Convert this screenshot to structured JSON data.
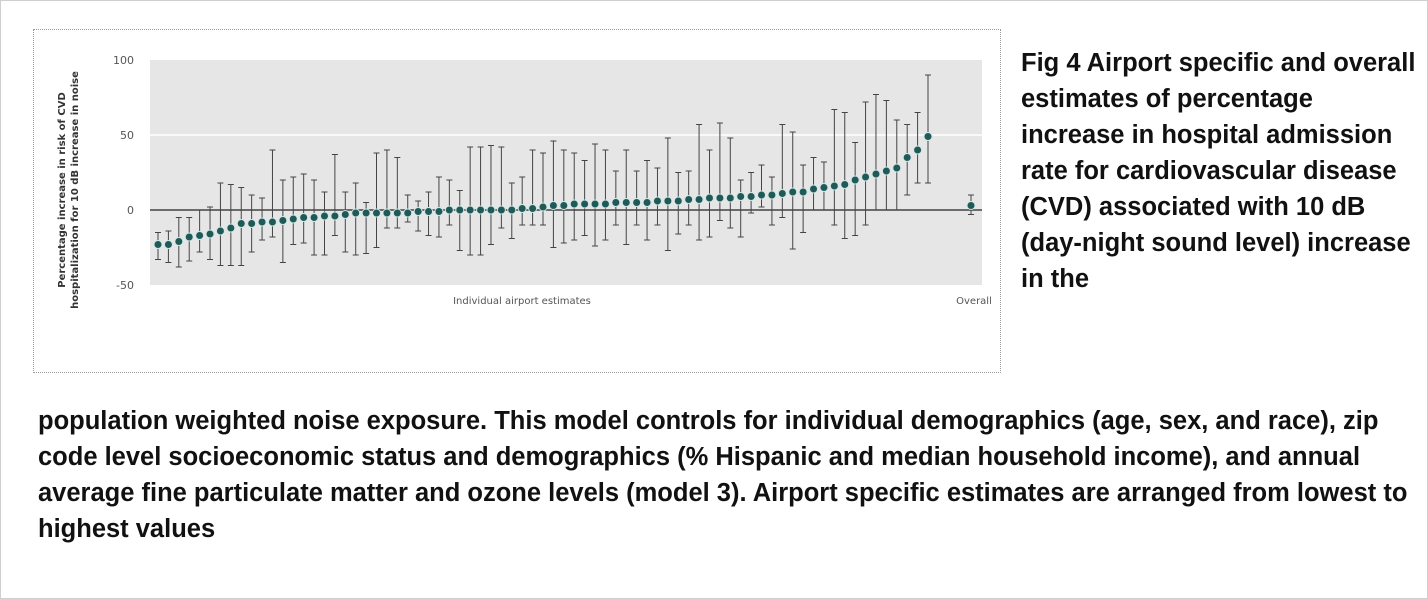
{
  "caption": {
    "right": "Fig 4 Airport specific and overall estimates of percentage increase in hospital admission rate for cardiovascular disease (CVD) associated with 10 dB (day-night sound level) increase in the",
    "bottom": "population weighted noise exposure. This model controls for individual demographics (age, sex, and race), zip code level socioeconomic status and demographics (% Hispanic and median household income), and annual average fine particulate matter and ozone levels (model 3). Airport specific estimates are arranged from lowest to highest values"
  },
  "chart_data": {
    "type": "scatter",
    "ylabel_line1": "Percentage increase in risk of CVD",
    "ylabel_line2": "hospitalization for 10 dB increase in noise",
    "xlabel": "Individual airport estimates",
    "overall_label": "Overall",
    "ylim": [
      -55,
      100
    ],
    "yticks": [
      100,
      50,
      0,
      -50
    ],
    "band_range": [
      -50,
      100
    ],
    "grid_lines": [
      50
    ],
    "reference_line": 0,
    "colors": {
      "band": "#e6e6e6",
      "point": "#1f5a58",
      "point_edge": "#cfe7e4",
      "line": "#444444"
    },
    "estimates": [
      -23,
      -23,
      -21,
      -18,
      -17,
      -16,
      -14,
      -12,
      -9,
      -9,
      -8,
      -8,
      -7,
      -6,
      -5,
      -5,
      -4,
      -4,
      -3,
      -2,
      -2,
      -2,
      -2,
      -2,
      -2,
      -1,
      -1,
      -1,
      0,
      0,
      0,
      0,
      0,
      0,
      0,
      1,
      1,
      2,
      3,
      3,
      4,
      4,
      4,
      4,
      5,
      5,
      5,
      5,
      6,
      6,
      6,
      7,
      7,
      8,
      8,
      8,
      9,
      9,
      10,
      10,
      11,
      12,
      12,
      14,
      15,
      16,
      17,
      20,
      22,
      24,
      26,
      28,
      35,
      40,
      49
    ],
    "lower": [
      -33,
      -35,
      -38,
      -34,
      -28,
      -33,
      -37,
      -37,
      -37,
      -28,
      -20,
      -18,
      -35,
      -23,
      -22,
      -30,
      -30,
      -17,
      -28,
      -30,
      -29,
      -25,
      -12,
      -12,
      -8,
      -14,
      -17,
      -18,
      -10,
      -27,
      -30,
      -30,
      -23,
      -12,
      -19,
      -10,
      -10,
      -10,
      -25,
      -22,
      -20,
      -17,
      -24,
      -20,
      -10,
      -23,
      -10,
      -20,
      -10,
      -27,
      -16,
      -10,
      -20,
      -18,
      -7,
      -12,
      -18,
      -2,
      2,
      -10,
      -5,
      -26,
      -15,
      0,
      0,
      -10,
      -19,
      -17,
      -10,
      0,
      0,
      0,
      10,
      18,
      18
    ],
    "upper": [
      -15,
      -14,
      -5,
      -5,
      0,
      2,
      18,
      17,
      15,
      10,
      8,
      40,
      20,
      22,
      24,
      20,
      12,
      37,
      12,
      18,
      5,
      38,
      40,
      35,
      10,
      6,
      12,
      22,
      20,
      13,
      42,
      42,
      43,
      42,
      18,
      22,
      40,
      38,
      46,
      40,
      38,
      33,
      44,
      40,
      26,
      40,
      26,
      33,
      28,
      48,
      25,
      26,
      57,
      40,
      58,
      48,
      20,
      25,
      30,
      22,
      57,
      52,
      30,
      35,
      32,
      67,
      65,
      45,
      72,
      77,
      73,
      60,
      57,
      65,
      90
    ],
    "overall": {
      "estimate": 3,
      "lower": -3,
      "upper": 10
    }
  }
}
